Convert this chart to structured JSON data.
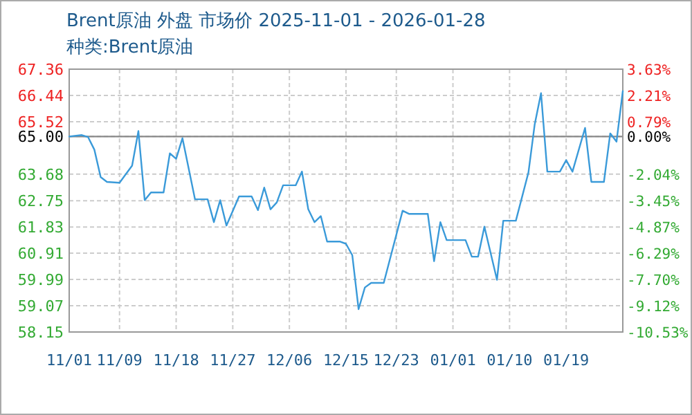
{
  "chart_data": {
    "type": "line",
    "title": "Brent原油 外盘 市场价 2025-11-01 - 2026-01-28",
    "subtitle": "种类:Brent原油",
    "x": [
      "2025-11-01",
      "2025-11-03",
      "2025-11-04",
      "2025-11-05",
      "2025-11-06",
      "2025-11-07",
      "2025-11-09",
      "2025-11-11",
      "2025-11-12",
      "2025-11-13",
      "2025-11-14",
      "2025-11-16",
      "2025-11-17",
      "2025-11-18",
      "2025-11-19",
      "2025-11-21",
      "2025-11-23",
      "2025-11-24",
      "2025-11-25",
      "2025-11-26",
      "2025-11-28",
      "2025-11-30",
      "2025-12-01",
      "2025-12-02",
      "2025-12-03",
      "2025-12-04",
      "2025-12-05",
      "2025-12-07",
      "2025-12-08",
      "2025-12-09",
      "2025-12-10",
      "2025-12-11",
      "2025-12-12",
      "2025-12-14",
      "2025-12-15",
      "2025-12-16",
      "2025-12-17",
      "2025-12-18",
      "2025-12-19",
      "2025-12-21",
      "2025-12-24",
      "2025-12-25",
      "2025-12-28",
      "2025-12-29",
      "2025-12-30",
      "2025-12-31",
      "2026-01-03",
      "2026-01-04",
      "2026-01-05",
      "2026-01-06",
      "2026-01-08",
      "2026-01-09",
      "2026-01-11",
      "2026-01-13",
      "2026-01-14",
      "2026-01-15",
      "2026-01-16",
      "2026-01-18",
      "2026-01-19",
      "2026-01-20",
      "2026-01-22",
      "2026-01-23",
      "2026-01-25",
      "2026-01-26",
      "2026-01-27",
      "2026-01-28"
    ],
    "series": [
      {
        "color": "#3a9ad9",
        "values": [
          65.0,
          65.05,
          64.98,
          64.54,
          63.58,
          63.41,
          63.38,
          63.98,
          65.19,
          62.77,
          63.04,
          63.04,
          64.41,
          64.22,
          64.94,
          62.8,
          62.8,
          62.0,
          62.77,
          61.88,
          62.9,
          62.9,
          62.42,
          63.21,
          62.45,
          62.69,
          63.29,
          63.29,
          63.77,
          62.45,
          62.0,
          62.21,
          61.32,
          61.32,
          61.24,
          60.84,
          58.95,
          59.71,
          59.87,
          59.87,
          62.4,
          62.29,
          62.29,
          60.63,
          62.0,
          61.37,
          61.37,
          60.79,
          60.79,
          61.84,
          59.98,
          62.05,
          62.05,
          63.74,
          65.43,
          66.52,
          63.77,
          63.77,
          64.17,
          63.77,
          65.3,
          63.41,
          63.41,
          65.11,
          64.82,
          66.59
        ]
      }
    ],
    "xlim": [
      "2025-11-01",
      "2026-01-28"
    ],
    "xticks": [
      {
        "value": "2025-11-01",
        "label": "11/01"
      },
      {
        "value": "2025-11-09",
        "label": "11/09"
      },
      {
        "value": "2025-11-18",
        "label": "11/18"
      },
      {
        "value": "2025-11-27",
        "label": "11/27"
      },
      {
        "value": "2025-12-06",
        "label": "12/06"
      },
      {
        "value": "2025-12-15",
        "label": "12/15"
      },
      {
        "value": "2025-12-23",
        "label": "12/23"
      },
      {
        "value": "2026-01-01",
        "label": "01/01"
      },
      {
        "value": "2026-01-10",
        "label": "01/10"
      },
      {
        "value": "2026-01-19",
        "label": "01/19"
      }
    ],
    "ylim": [
      58.15,
      67.36
    ],
    "yticks": [
      58.15,
      59.07,
      59.99,
      60.91,
      61.83,
      62.75,
      63.68,
      {
        "value": 65,
        "label": "65.00"
      },
      65.52,
      66.44,
      67.36
    ],
    "y2lim": [
      -10.53,
      3.63
    ],
    "y2ticks": [
      {
        "value": -10.53,
        "label": "-10.53%"
      },
      {
        "value": -9.12,
        "label": "-9.12%"
      },
      {
        "value": -7.7,
        "label": "-7.70%"
      },
      {
        "value": -6.29,
        "label": "-6.29%"
      },
      {
        "value": -4.87,
        "label": "-4.87%"
      },
      {
        "value": -3.45,
        "label": "-3.45%"
      },
      {
        "value": -2.04,
        "label": "-2.04%"
      },
      {
        "value": 0,
        "label": "0.00%"
      },
      {
        "value": 0.79,
        "label": "0.79%"
      },
      {
        "value": 2.21,
        "label": "2.21%"
      },
      {
        "value": 3.63,
        "label": "3.63%"
      }
    ],
    "ref_lines": [
      {
        "axis": "y",
        "value": 65,
        "color": "#888888"
      }
    ],
    "grid": true,
    "line_style": "solid",
    "marker": "none"
  }
}
